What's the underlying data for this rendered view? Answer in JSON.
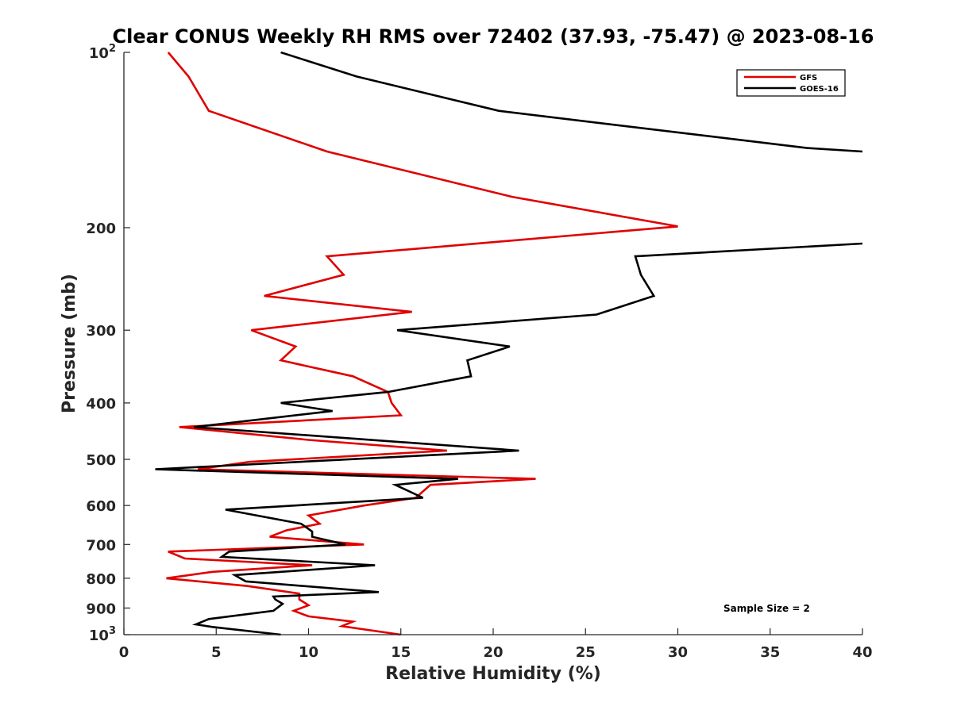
{
  "chart_data": {
    "type": "line",
    "title": "Clear CONUS Weekly RH RMS over 72402 (37.93, -75.47) @ 2023-08-16",
    "xlabel": "Relative Humidity (%)",
    "ylabel": "Pressure (mb)",
    "xlim": [
      0,
      40
    ],
    "ylim": [
      100,
      1000
    ],
    "yscale": "log",
    "y_reversed": true,
    "x_ticks": [
      {
        "value": 0,
        "label": "0"
      },
      {
        "value": 5,
        "label": "5"
      },
      {
        "value": 10,
        "label": "10"
      },
      {
        "value": 15,
        "label": "15"
      },
      {
        "value": 20,
        "label": "20"
      },
      {
        "value": 25,
        "label": "25"
      },
      {
        "value": 30,
        "label": "30"
      },
      {
        "value": 35,
        "label": "35"
      },
      {
        "value": 40,
        "label": "40"
      }
    ],
    "y_ticks": [
      {
        "value": 100,
        "label": "10",
        "sup": "2"
      },
      {
        "value": 200,
        "label": "200"
      },
      {
        "value": 300,
        "label": "300"
      },
      {
        "value": 400,
        "label": "400"
      },
      {
        "value": 500,
        "label": "500"
      },
      {
        "value": 600,
        "label": "600"
      },
      {
        "value": 700,
        "label": "700"
      },
      {
        "value": 800,
        "label": "800"
      },
      {
        "value": 900,
        "label": "900"
      },
      {
        "value": 1000,
        "label": "10",
        "sup": "3"
      }
    ],
    "legend_position": "top-right",
    "annotation": "Sample Size = 2",
    "series": [
      {
        "name": "GFS",
        "color": "#e00000",
        "x": [
          2.4,
          3.5,
          4.6,
          11.0,
          21.0,
          30.0,
          11.0,
          11.9,
          7.6,
          15.6,
          6.9,
          9.3,
          8.5,
          12.4,
          14.3,
          14.5,
          15.0,
          3.0,
          10.0,
          17.5,
          6.8,
          4.0,
          22.3,
          16.6,
          15.8,
          13.0,
          10.0,
          10.6,
          8.8,
          7.9,
          13.0,
          2.4,
          3.3,
          10.2,
          4.8,
          2.3,
          6.7,
          9.5,
          9.5,
          10.0,
          9.2,
          10.0,
          12.4,
          11.8,
          15.0
        ],
        "y": [
          100,
          110,
          126,
          148,
          177,
          199,
          224,
          241,
          262,
          279,
          300,
          320,
          338,
          360,
          383,
          400,
          420,
          440,
          463,
          483,
          505,
          520,
          540,
          553,
          582,
          600,
          624,
          645,
          662,
          679,
          700,
          720,
          740,
          760,
          780,
          800,
          825,
          850,
          870,
          890,
          910,
          930,
          950,
          967,
          1000
        ]
      },
      {
        "name": "GOES-16",
        "color": "#000000",
        "x": [
          8.5,
          12.6,
          20.3,
          37.0,
          40.0,
          null,
          40.0,
          27.7,
          28.0,
          28.7,
          25.6,
          14.8,
          20.9,
          18.6,
          18.8,
          14.3,
          8.5,
          11.3,
          3.8,
          21.4,
          1.7,
          18.1,
          14.7,
          16.2,
          5.5,
          9.6,
          10.2,
          10.2,
          12.0,
          5.7,
          5.3,
          13.6,
          6.0,
          6.6,
          13.8,
          8.1,
          8.2,
          8.6,
          8.1,
          4.6,
          3.9,
          4.8,
          8.5
        ],
        "y": [
          100,
          110,
          126,
          146,
          148,
          null,
          213,
          224,
          241,
          262,
          282,
          300,
          320,
          338,
          360,
          383,
          400,
          413,
          440,
          483,
          520,
          540,
          553,
          582,
          610,
          645,
          665,
          679,
          700,
          720,
          735,
          760,
          790,
          810,
          845,
          860,
          870,
          885,
          910,
          940,
          960,
          970,
          1000
        ]
      }
    ]
  }
}
